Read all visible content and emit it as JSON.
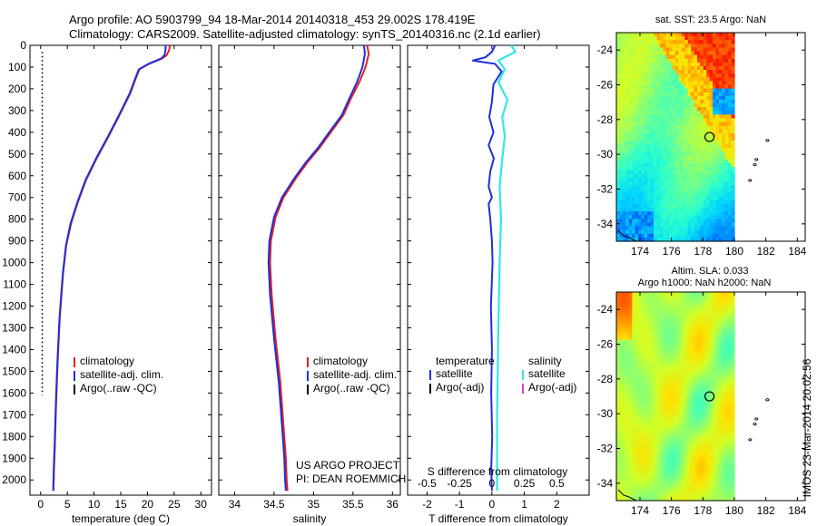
{
  "header": {
    "line1": "Argo profile: AO 5903799_94 18-Mar-2014 20140318_453 29.002S 178.419E",
    "line2": "Climatology: CARS2009. Satellite-adjusted climatology: synTS_20140316.nc (2.1d earlier)"
  },
  "colors": {
    "climatology": "#e8201c",
    "satellite": "#1f2fdc",
    "argo": "#000000",
    "sal_satellite": "#33e6e6",
    "sal_argo": "#e040d0"
  },
  "chart_data": [
    {
      "type": "line",
      "id": "temperature",
      "xlabel": "temperature (deg C)",
      "ylabel": "",
      "xlim": [
        -2,
        32
      ],
      "ylim": [
        2070,
        0
      ],
      "xticks": [
        0,
        5,
        10,
        15,
        20,
        25,
        30
      ],
      "xtick_labels": [
        "0",
        "5",
        "10",
        "15",
        "20",
        "25",
        "30"
      ],
      "yticks": [
        0,
        100,
        200,
        300,
        400,
        500,
        600,
        700,
        800,
        900,
        1000,
        1100,
        1200,
        1300,
        1400,
        1500,
        1600,
        1700,
        1800,
        1900,
        2000
      ],
      "ytick_labels": [
        "0",
        "100",
        "200",
        "300",
        "400",
        "500",
        "600",
        "700",
        "800",
        "900",
        "1000",
        "1100",
        "1200",
        "1300",
        "1400",
        "1500",
        "1600",
        "1700",
        "1800",
        "1900",
        "2000"
      ],
      "legend": [
        "climatology",
        "satellite-adj. clim.",
        "Argo(..raw -QC)"
      ],
      "legend_position": "lower-right",
      "series": [
        {
          "name": "climatology",
          "color": "#e8201c",
          "x": [
            24.2,
            24.1,
            23.6,
            22.8,
            20.3,
            18.5,
            17.7,
            16.8,
            14.8,
            12.7,
            10.5,
            8.5,
            7.0,
            5.7,
            4.8,
            4.2,
            3.6,
            3.2,
            2.9,
            2.65,
            2.5,
            2.4
          ],
          "y": [
            0,
            20,
            45,
            60,
            85,
            110,
            160,
            220,
            320,
            420,
            520,
            620,
            720,
            820,
            920,
            1050,
            1250,
            1450,
            1650,
            1850,
            1950,
            2050
          ]
        },
        {
          "name": "satellite-adj. clim.",
          "color": "#1f2fdc",
          "x": [
            23.4,
            23.4,
            23.2,
            22.6,
            20.2,
            18.4,
            17.6,
            16.7,
            14.7,
            12.6,
            10.4,
            8.4,
            6.9,
            5.6,
            4.75,
            4.15,
            3.55,
            3.15,
            2.85,
            2.6,
            2.45,
            2.35
          ],
          "y": [
            0,
            20,
            45,
            60,
            85,
            110,
            160,
            220,
            320,
            420,
            520,
            620,
            720,
            820,
            920,
            1050,
            1250,
            1450,
            1650,
            1850,
            1950,
            2050
          ]
        },
        {
          "name": "Argo(..raw -QC)",
          "color": "#000000",
          "style": "dotted",
          "x": [
            0.3,
            0.3
          ],
          "y": [
            30,
            1610
          ]
        }
      ]
    },
    {
      "type": "line",
      "id": "salinity",
      "xlabel": "salinity",
      "ylabel": "",
      "xlim": [
        33.8,
        36.1
      ],
      "ylim": [
        2070,
        0
      ],
      "xticks": [
        34,
        34.5,
        35,
        35.5,
        36
      ],
      "xtick_labels": [
        "34",
        "34.5",
        "35",
        "35.5",
        "36"
      ],
      "legend": [
        "climatology",
        "satellite-adj. clim.",
        "Argo(..raw -QC)"
      ],
      "legend_position": "lower-right",
      "annotation": [
        "US ARGO PROJECT",
        "PI: DEAN ROEMMICH"
      ],
      "series": [
        {
          "name": "climatology",
          "color": "#e8201c",
          "x": [
            35.68,
            35.7,
            35.66,
            35.58,
            35.48,
            35.38,
            35.24,
            35.08,
            34.92,
            34.78,
            34.62,
            34.52,
            34.46,
            34.45,
            34.47,
            34.52,
            34.58,
            34.62,
            34.65,
            34.66,
            34.67
          ],
          "y": [
            0,
            40,
            100,
            170,
            240,
            320,
            390,
            470,
            540,
            610,
            700,
            790,
            900,
            1000,
            1150,
            1350,
            1550,
            1750,
            1900,
            2000,
            2050
          ]
        },
        {
          "name": "satellite-adj. clim.",
          "color": "#1f2fdc",
          "x": [
            35.64,
            35.65,
            35.62,
            35.55,
            35.46,
            35.36,
            35.22,
            35.06,
            34.9,
            34.76,
            34.6,
            34.5,
            34.44,
            34.43,
            34.45,
            34.5,
            34.56,
            34.6,
            34.63,
            34.64,
            34.65
          ],
          "y": [
            0,
            40,
            100,
            170,
            240,
            320,
            390,
            470,
            540,
            610,
            700,
            790,
            900,
            1000,
            1150,
            1350,
            1550,
            1750,
            1900,
            2000,
            2050
          ]
        }
      ]
    },
    {
      "type": "line",
      "id": "difference",
      "xlabel": "T difference from climatology",
      "xlabel_top": "S difference from climatology",
      "ylabel": "",
      "xlim": [
        -2.6,
        3.0
      ],
      "ylim": [
        2070,
        0
      ],
      "xticks": [
        -2,
        -1,
        0,
        1,
        2
      ],
      "xtick_labels": [
        "-2",
        "-1",
        "0",
        "1",
        "2"
      ],
      "s_ticks": [
        -0.5,
        -0.25,
        0,
        0.25,
        0.5
      ],
      "s_tick_labels": [
        "-0.5",
        "-0.25",
        "0",
        "0.25",
        "0.5"
      ],
      "legend_left_title": "temperature",
      "legend_right_title": "salinity",
      "legend_left": [
        "satellite",
        "Argo(-adj)"
      ],
      "legend_right": [
        "satellite",
        "Argo(-adj)"
      ],
      "legend_position": "lower-center",
      "series": [
        {
          "name": "temperature satellite",
          "color": "#1f2fdc",
          "x": [
            0.1,
            0.0,
            -0.2,
            -0.6,
            0.1,
            0.3,
            0.05,
            0.0,
            -0.08,
            0.05,
            -0.1,
            0.06,
            -0.05,
            -0.1,
            0.0,
            -0.1,
            -0.05,
            0.0,
            0.02,
            -0.03,
            0.0,
            -0.02,
            0.01,
            -0.02,
            0.0
          ],
          "y": [
            0,
            30,
            55,
            70,
            85,
            120,
            180,
            260,
            330,
            400,
            460,
            520,
            580,
            650,
            700,
            730,
            800,
            900,
            1000,
            1200,
            1400,
            1600,
            1800,
            1950,
            2050
          ]
        },
        {
          "name": "salinity satellite",
          "color": "#33e6e6",
          "x": [
            0.15,
            0.18,
            0.05,
            0.1,
            0.05,
            0.12,
            0.08,
            0.1,
            0.08,
            0.06,
            0.07,
            0.06,
            0.05,
            0.04,
            0.04
          ],
          "y": [
            0,
            30,
            70,
            110,
            170,
            250,
            330,
            420,
            520,
            650,
            800,
            1000,
            1300,
            1700,
            2050
          ]
        }
      ]
    },
    {
      "type": "heatmap",
      "id": "sst-map",
      "title": "sat. SST: 23.5 Argo: NaN",
      "xlim": [
        172.5,
        184.5
      ],
      "ylim": [
        -35,
        -23
      ],
      "xticks": [
        174,
        176,
        178,
        180,
        182,
        184
      ],
      "xtick_labels": [
        "174",
        "176",
        "178",
        "180",
        "182",
        "184"
      ],
      "yticks": [
        -24,
        -26,
        -28,
        -30,
        -32,
        -34
      ],
      "ytick_labels": [
        "-24",
        "-26",
        "-28",
        "-30",
        "-32",
        "-34"
      ],
      "data_lon_range": [
        172.5,
        180.0
      ],
      "marker": {
        "lon": 178.419,
        "lat": -29.002
      },
      "islands": [
        {
          "lon": 182.1,
          "lat": -29.2
        },
        {
          "lon": 181.4,
          "lat": -30.3
        },
        {
          "lon": 181.3,
          "lat": -30.6
        },
        {
          "lon": 181.0,
          "lat": -31.5
        }
      ]
    },
    {
      "type": "heatmap",
      "id": "sla-map",
      "title": "Altim. SLA: 0.033",
      "subtitle": "Argo h1000: NaN h2000: NaN",
      "xlim": [
        172.5,
        184.5
      ],
      "ylim": [
        -35,
        -23
      ],
      "xticks": [
        174,
        176,
        178,
        180,
        182,
        184
      ],
      "xtick_labels": [
        "174",
        "176",
        "178",
        "180",
        "182",
        "184"
      ],
      "yticks": [
        -24,
        -26,
        -28,
        -30,
        -32,
        -34
      ],
      "ytick_labels": [
        "-24",
        "-26",
        "-28",
        "-30",
        "-32",
        "-34"
      ],
      "data_lon_range": [
        172.5,
        180.0
      ],
      "marker": {
        "lon": 178.419,
        "lat": -29.002
      },
      "islands": [
        {
          "lon": 182.1,
          "lat": -29.2
        },
        {
          "lon": 181.4,
          "lat": -30.3
        },
        {
          "lon": 181.3,
          "lat": -30.6
        },
        {
          "lon": 181.0,
          "lat": -31.5
        }
      ]
    }
  ],
  "sidebar_text": "IMOS 23-Mar-2014 20:02:56"
}
